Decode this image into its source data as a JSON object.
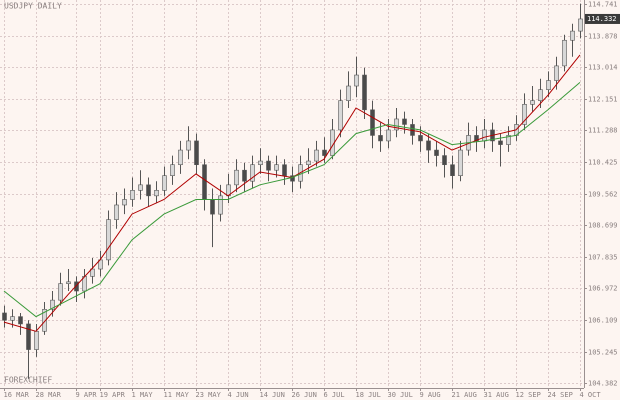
{
  "chart_data": {
    "type": "candlestick",
    "title": "USDJPY DAILY",
    "watermark": "FOREXCHIEF",
    "ylim": [
      104.25,
      114.85
    ],
    "yticks": [
      114.741,
      113.878,
      113.014,
      112.151,
      111.288,
      110.425,
      109.562,
      108.699,
      107.835,
      106.972,
      106.109,
      105.245,
      104.382
    ],
    "xlim": [
      -0.5,
      72.5
    ],
    "xticks": [
      {
        "value": 0,
        "label": "16 MAR"
      },
      {
        "value": 4,
        "label": "28 MAR"
      },
      {
        "value": 9,
        "label": "9 APR"
      },
      {
        "value": 12,
        "label": "19 APR"
      },
      {
        "value": 16,
        "label": "1 MAY"
      },
      {
        "value": 20,
        "label": "11 MAY"
      },
      {
        "value": 24,
        "label": "23 MAY"
      },
      {
        "value": 28,
        "label": "4 JUN"
      },
      {
        "value": 32,
        "label": "14 JUN"
      },
      {
        "value": 36,
        "label": "26 JUN"
      },
      {
        "value": 40,
        "label": "6 JUL"
      },
      {
        "value": 44,
        "label": "18 JUL"
      },
      {
        "value": 48,
        "label": "30 JUL"
      },
      {
        "value": 52,
        "label": "9 AUG"
      },
      {
        "value": 56,
        "label": "21 AUG"
      },
      {
        "value": 60,
        "label": "31 AUG"
      },
      {
        "value": 64,
        "label": "12 SEP"
      },
      {
        "value": 68,
        "label": "24 SEP"
      },
      {
        "value": 72,
        "label": "4 OCT"
      }
    ],
    "grid": true,
    "up_color": "#d8d8d8",
    "down_color": "#4a4a4a",
    "wick_color": "#555555",
    "last_price": 114.332,
    "candles": [
      [
        106.3,
        106.5,
        105.9,
        106.1
      ],
      [
        106.1,
        106.4,
        105.9,
        106.2
      ],
      [
        106.2,
        106.3,
        105.7,
        106.0
      ],
      [
        106.0,
        106.1,
        104.5,
        105.3
      ],
      [
        105.3,
        106.0,
        105.1,
        105.8
      ],
      [
        105.8,
        106.6,
        105.7,
        106.4
      ],
      [
        106.4,
        106.9,
        106.2,
        106.65
      ],
      [
        106.65,
        107.4,
        106.5,
        107.1
      ],
      [
        107.1,
        107.5,
        106.9,
        107.15
      ],
      [
        107.15,
        107.3,
        106.6,
        106.9
      ],
      [
        106.9,
        107.5,
        106.7,
        107.3
      ],
      [
        107.3,
        107.8,
        107.1,
        107.5
      ],
      [
        107.5,
        108.0,
        107.3,
        107.75
      ],
      [
        107.75,
        109.1,
        107.6,
        108.85
      ],
      [
        108.85,
        109.6,
        108.6,
        109.25
      ],
      [
        109.25,
        109.7,
        109.0,
        109.4
      ],
      [
        109.4,
        110.0,
        109.2,
        109.65
      ],
      [
        109.65,
        110.2,
        109.4,
        109.8
      ],
      [
        109.8,
        110.0,
        109.2,
        109.5
      ],
      [
        109.5,
        109.9,
        109.3,
        109.65
      ],
      [
        109.65,
        110.3,
        109.5,
        110.05
      ],
      [
        110.05,
        110.6,
        109.8,
        110.35
      ],
      [
        110.35,
        111.0,
        110.1,
        110.75
      ],
      [
        110.75,
        111.4,
        110.5,
        111.0
      ],
      [
        111.0,
        111.2,
        110.1,
        110.35
      ],
      [
        110.35,
        110.5,
        109.1,
        109.4
      ],
      [
        109.4,
        109.7,
        108.1,
        109.0
      ],
      [
        109.0,
        109.8,
        108.8,
        109.5
      ],
      [
        109.5,
        110.1,
        109.3,
        109.8
      ],
      [
        109.8,
        110.5,
        109.6,
        110.2
      ],
      [
        110.2,
        110.4,
        109.6,
        109.9
      ],
      [
        109.9,
        110.6,
        109.7,
        110.35
      ],
      [
        110.35,
        110.8,
        110.1,
        110.45
      ],
      [
        110.45,
        110.6,
        109.9,
        110.2
      ],
      [
        110.2,
        110.6,
        110.0,
        110.35
      ],
      [
        110.35,
        110.5,
        109.8,
        110.05
      ],
      [
        110.05,
        110.3,
        109.6,
        109.9
      ],
      [
        109.9,
        110.6,
        109.7,
        110.35
      ],
      [
        110.35,
        110.8,
        110.1,
        110.45
      ],
      [
        110.45,
        111.0,
        110.3,
        110.75
      ],
      [
        110.75,
        111.1,
        110.4,
        110.6
      ],
      [
        110.6,
        111.6,
        110.5,
        111.3
      ],
      [
        111.3,
        112.4,
        111.1,
        112.1
      ],
      [
        112.1,
        112.9,
        111.9,
        112.5
      ],
      [
        112.5,
        113.3,
        112.2,
        112.8
      ],
      [
        112.8,
        113.0,
        111.6,
        111.85
      ],
      [
        111.85,
        112.1,
        110.8,
        111.15
      ],
      [
        111.15,
        111.5,
        110.7,
        111.0
      ],
      [
        111.0,
        111.6,
        110.8,
        111.3
      ],
      [
        111.3,
        111.9,
        111.1,
        111.6
      ],
      [
        111.6,
        111.8,
        111.2,
        111.45
      ],
      [
        111.45,
        111.6,
        110.9,
        111.15
      ],
      [
        111.15,
        111.4,
        110.7,
        111.0
      ],
      [
        111.0,
        111.2,
        110.4,
        110.75
      ],
      [
        110.75,
        111.0,
        110.3,
        110.6
      ],
      [
        110.6,
        110.8,
        110.0,
        110.35
      ],
      [
        110.35,
        110.6,
        109.7,
        110.05
      ],
      [
        110.05,
        111.0,
        109.9,
        110.75
      ],
      [
        110.75,
        111.5,
        110.6,
        111.15
      ],
      [
        111.15,
        111.4,
        110.7,
        111.0
      ],
      [
        111.0,
        111.6,
        110.8,
        111.3
      ],
      [
        111.3,
        111.5,
        110.7,
        111.0
      ],
      [
        111.0,
        111.2,
        110.3,
        110.9
      ],
      [
        110.9,
        111.4,
        110.7,
        111.15
      ],
      [
        111.15,
        111.7,
        111.0,
        111.45
      ],
      [
        111.45,
        112.3,
        111.3,
        112.0
      ],
      [
        112.0,
        112.5,
        111.8,
        112.1
      ],
      [
        112.1,
        112.7,
        111.9,
        112.4
      ],
      [
        112.4,
        112.9,
        112.2,
        112.65
      ],
      [
        112.65,
        113.3,
        112.4,
        113.05
      ],
      [
        113.05,
        113.9,
        112.9,
        113.75
      ],
      [
        113.75,
        114.2,
        113.3,
        114.0
      ],
      [
        114.0,
        114.75,
        113.8,
        114.332
      ]
    ],
    "lines": [
      {
        "color": "#b00000",
        "x": [
          0,
          4,
          8,
          12,
          16,
          20,
          24,
          28,
          32,
          36,
          40,
          44,
          48,
          52,
          56,
          60,
          64,
          68,
          72
        ],
        "values": [
          106.05,
          105.8,
          106.8,
          107.75,
          109.0,
          109.4,
          110.1,
          109.5,
          110.15,
          110.0,
          110.5,
          111.9,
          111.4,
          111.25,
          110.75,
          111.1,
          111.3,
          112.25,
          113.35
        ]
      },
      {
        "color": "#3a9a3a",
        "x": [
          0,
          4,
          8,
          12,
          16,
          20,
          24,
          28,
          32,
          36,
          40,
          44,
          48,
          52,
          56,
          60,
          64,
          68,
          72
        ],
        "values": [
          106.9,
          106.2,
          106.65,
          107.1,
          108.3,
          109.0,
          109.4,
          109.4,
          109.8,
          110.0,
          110.35,
          111.2,
          111.45,
          111.3,
          110.9,
          111.0,
          111.15,
          111.85,
          112.6
        ]
      }
    ]
  }
}
